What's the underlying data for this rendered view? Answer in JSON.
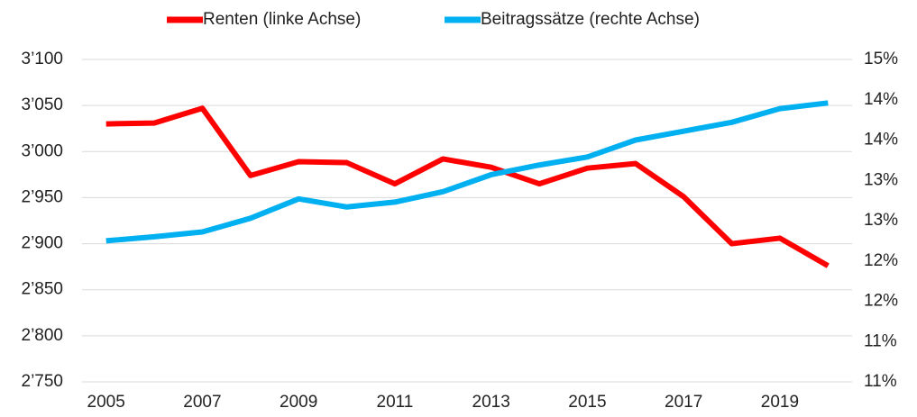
{
  "chart_data": {
    "type": "line",
    "x": [
      2005,
      2006,
      2007,
      2008,
      2009,
      2010,
      2011,
      2012,
      2013,
      2014,
      2015,
      2016,
      2017,
      2018,
      2019,
      2020
    ],
    "xlim": [
      2004.5,
      2020.5
    ],
    "xticks": [
      2005,
      2007,
      2009,
      2011,
      2013,
      2015,
      2017,
      2019
    ],
    "ylim": [
      2750,
      3100
    ],
    "yticks": [
      {
        "value": 2750,
        "label": "2’750"
      },
      {
        "value": 2800,
        "label": "2’800"
      },
      {
        "value": 2850,
        "label": "2’850"
      },
      {
        "value": 2900,
        "label": "2’900"
      },
      {
        "value": 2950,
        "label": "2’950"
      },
      {
        "value": 3000,
        "label": "3’000"
      },
      {
        "value": 3050,
        "label": "3’050"
      },
      {
        "value": 3100,
        "label": "3’100"
      }
    ],
    "y2lim": [
      10.75,
      14.75
    ],
    "y2ticks": [
      {
        "value": 10.75,
        "label": "11%"
      },
      {
        "value": 11.25,
        "label": "11%"
      },
      {
        "value": 11.75,
        "label": "12%"
      },
      {
        "value": 12.25,
        "label": "12%"
      },
      {
        "value": 12.75,
        "label": "13%"
      },
      {
        "value": 13.25,
        "label": "13%"
      },
      {
        "value": 13.75,
        "label": "14%"
      },
      {
        "value": 14.25,
        "label": "14%"
      },
      {
        "value": 14.75,
        "label": "15%"
      }
    ],
    "grid": true,
    "legend": "top",
    "series": [
      {
        "name": "Renten (linke Achse)",
        "color": "#ff0000",
        "values": [
          3030,
          3031,
          3047,
          2974,
          2989,
          2988,
          2965,
          2992,
          2983,
          2965,
          2982,
          2987,
          2951,
          2900,
          2906,
          2876
        ]
      },
      {
        "name": "Beitragssätze (rechte Achse)",
        "color": "#00b0f0",
        "axis": "y2",
        "values": [
          12.5,
          12.55,
          12.61,
          12.78,
          13.02,
          12.92,
          12.98,
          13.11,
          13.32,
          13.44,
          13.54,
          13.75,
          13.86,
          13.97,
          14.14,
          14.21
        ]
      }
    ]
  }
}
